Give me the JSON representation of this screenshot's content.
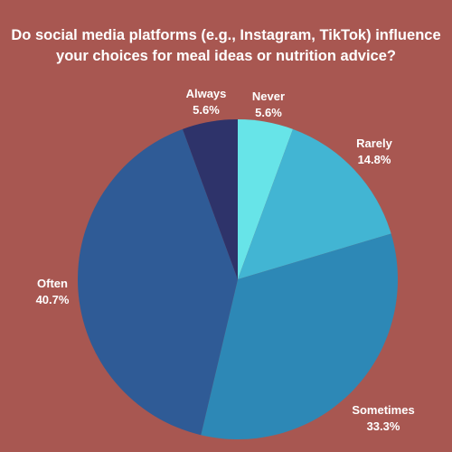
{
  "chart_data": {
    "type": "pie",
    "title_lines": [
      "Do social media platforms (e.g., Instagram, TikTok) influence",
      "your choices for meal ideas or nutrition advice?"
    ],
    "start_angle_deg": 0,
    "direction": "clockwise",
    "slices": [
      {
        "label": "Never",
        "pct_label": "5.6%",
        "value": 5.6,
        "color": "#67e4e8"
      },
      {
        "label": "Rarely",
        "pct_label": "14.8%",
        "value": 14.8,
        "color": "#42b5d3"
      },
      {
        "label": "Sometimes",
        "pct_label": "33.3%",
        "value": 33.3,
        "color": "#2d88b6"
      },
      {
        "label": "Often",
        "pct_label": "40.7%",
        "value": 40.7,
        "color": "#2f5b96"
      },
      {
        "label": "Always",
        "pct_label": "5.6%",
        "value": 5.6,
        "color": "#2e336a"
      }
    ]
  }
}
